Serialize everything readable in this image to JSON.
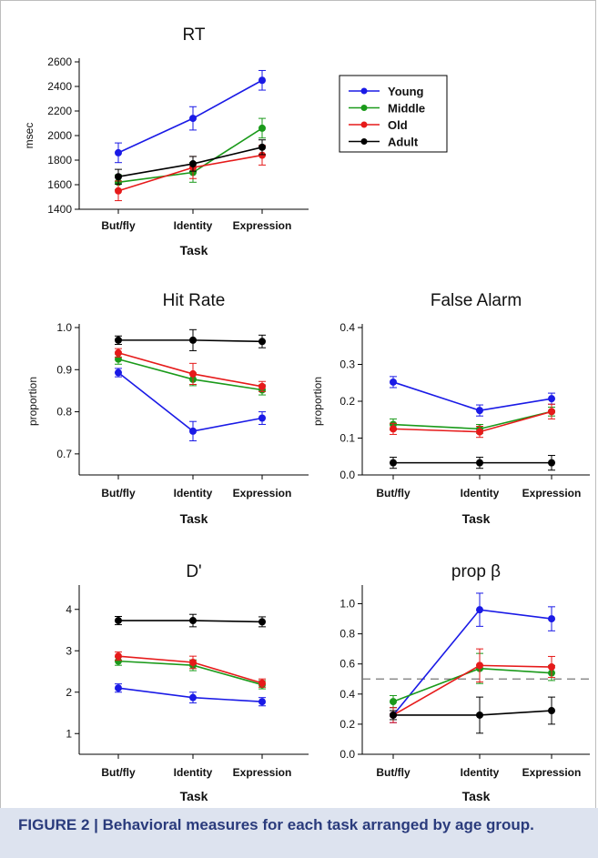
{
  "caption": "FIGURE 2 | Behavioral measures for each task arranged by age group.",
  "colors": {
    "Young": "#1a1ae6",
    "Middle": "#1a9a1a",
    "Old": "#e61a1a",
    "Adult": "#000000"
  },
  "legend": [
    "Young",
    "Middle",
    "Old",
    "Adult"
  ],
  "chart_data": [
    {
      "id": "rt",
      "type": "line",
      "title": "RT",
      "xlabel": "Task",
      "ylabel": "msec",
      "categories": [
        "But/fly",
        "Identity",
        "Expression"
      ],
      "ylim": [
        1400,
        2600
      ],
      "yticks": [
        1400,
        1600,
        1800,
        2000,
        2200,
        2400,
        2600
      ],
      "ytick_labels": [
        "1400",
        "1600",
        "1800",
        "2000",
        "2200",
        "2400",
        "2600"
      ],
      "legend_position": "right",
      "series": [
        {
          "name": "Young",
          "values": [
            1860,
            2140,
            2450
          ],
          "errors": [
            80,
            95,
            80
          ]
        },
        {
          "name": "Middle",
          "values": [
            1620,
            1700,
            2060
          ],
          "errors": [
            60,
            80,
            80
          ]
        },
        {
          "name": "Old",
          "values": [
            1550,
            1740,
            1840
          ],
          "errors": [
            80,
            90,
            80
          ]
        },
        {
          "name": "Adult",
          "values": [
            1665,
            1770,
            1905
          ],
          "errors": [
            60,
            60,
            60
          ]
        }
      ]
    },
    {
      "id": "hit",
      "type": "line",
      "title": "Hit Rate",
      "xlabel": "Task",
      "ylabel": "proportion",
      "categories": [
        "But/fly",
        "Identity",
        "Expression"
      ],
      "ylim": [
        0.65,
        1.0
      ],
      "yticks": [
        0.7,
        0.8,
        0.9,
        1.0
      ],
      "ytick_labels": [
        "0.7",
        "0.8",
        "0.9",
        "1.0"
      ],
      "series": [
        {
          "name": "Young",
          "values": [
            0.893,
            0.754,
            0.785
          ],
          "errors": [
            0.01,
            0.023,
            0.015
          ]
        },
        {
          "name": "Middle",
          "values": [
            0.925,
            0.877,
            0.852
          ],
          "errors": [
            0.012,
            0.015,
            0.012
          ]
        },
        {
          "name": "Old",
          "values": [
            0.94,
            0.89,
            0.86
          ],
          "errors": [
            0.01,
            0.025,
            0.012
          ]
        },
        {
          "name": "Adult",
          "values": [
            0.97,
            0.97,
            0.967
          ],
          "errors": [
            0.01,
            0.025,
            0.015
          ]
        }
      ]
    },
    {
      "id": "fa",
      "type": "line",
      "title": "False Alarm",
      "xlabel": "Task",
      "ylabel": "proportion",
      "categories": [
        "But/fly",
        "Identity",
        "Expression"
      ],
      "ylim": [
        0,
        0.4
      ],
      "yticks": [
        0,
        0.1,
        0.2,
        0.3,
        0.4
      ],
      "ytick_labels": [
        "0.0",
        "0.1",
        "0.2",
        "0.3",
        "0.4"
      ],
      "series": [
        {
          "name": "Young",
          "values": [
            0.252,
            0.175,
            0.207
          ],
          "errors": [
            0.015,
            0.015,
            0.015
          ]
        },
        {
          "name": "Middle",
          "values": [
            0.137,
            0.125,
            0.172
          ],
          "errors": [
            0.015,
            0.012,
            0.012
          ]
        },
        {
          "name": "Old",
          "values": [
            0.125,
            0.117,
            0.172
          ],
          "errors": [
            0.015,
            0.015,
            0.02
          ]
        },
        {
          "name": "Adult",
          "values": [
            0.033,
            0.033,
            0.033
          ],
          "errors": [
            0.015,
            0.015,
            0.02
          ]
        }
      ]
    },
    {
      "id": "dprime",
      "type": "line",
      "title": "D'",
      "xlabel": "Task",
      "ylabel": "",
      "categories": [
        "But/fly",
        "Identity",
        "Expression"
      ],
      "ylim": [
        0.5,
        4.5
      ],
      "yticks": [
        1,
        2,
        3,
        4
      ],
      "ytick_labels": [
        "1",
        "2",
        "3",
        "4"
      ],
      "series": [
        {
          "name": "Young",
          "values": [
            2.1,
            1.87,
            1.77
          ],
          "errors": [
            0.1,
            0.13,
            0.1
          ]
        },
        {
          "name": "Middle",
          "values": [
            2.75,
            2.65,
            2.18
          ],
          "errors": [
            0.1,
            0.13,
            0.1
          ]
        },
        {
          "name": "Old",
          "values": [
            2.87,
            2.72,
            2.22
          ],
          "errors": [
            0.1,
            0.15,
            0.1
          ]
        },
        {
          "name": "Adult",
          "values": [
            3.73,
            3.73,
            3.7
          ],
          "errors": [
            0.1,
            0.15,
            0.12
          ]
        }
      ]
    },
    {
      "id": "beta",
      "type": "line",
      "title": "prop β",
      "xlabel": "Task",
      "ylabel": "",
      "categories": [
        "But/fly",
        "Identity",
        "Expression"
      ],
      "ylim": [
        0,
        1.1
      ],
      "yticks": [
        0,
        0.2,
        0.4,
        0.6,
        0.8,
        1.0
      ],
      "ytick_labels": [
        "0.0",
        "0.2",
        "0.4",
        "0.6",
        "0.8",
        "1.0"
      ],
      "reference_line": 0.5,
      "series": [
        {
          "name": "Young",
          "values": [
            0.26,
            0.96,
            0.9
          ],
          "errors": [
            0.05,
            0.11,
            0.08
          ]
        },
        {
          "name": "Middle",
          "values": [
            0.35,
            0.57,
            0.54
          ],
          "errors": [
            0.04,
            0.1,
            0.05
          ]
        },
        {
          "name": "Old",
          "values": [
            0.26,
            0.59,
            0.58
          ],
          "errors": [
            0.05,
            0.11,
            0.07
          ]
        },
        {
          "name": "Adult",
          "values": [
            0.26,
            0.26,
            0.29
          ],
          "errors": [
            0.03,
            0.12,
            0.09
          ]
        }
      ]
    }
  ]
}
